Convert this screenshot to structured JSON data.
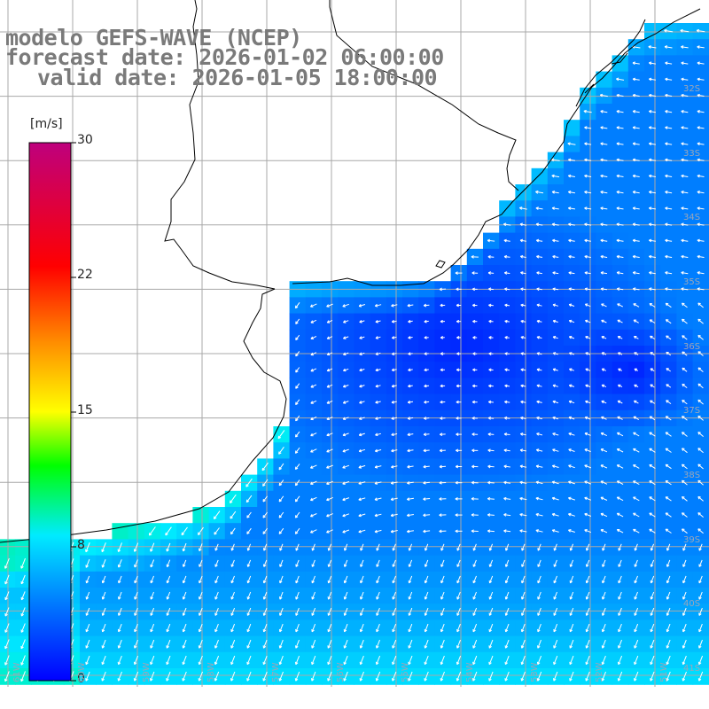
{
  "title": {
    "line1": "modelo GEFS-WAVE (NCEP)",
    "line2": "forecast date: 2026-01-02 06:00:00",
    "line3": "valid date: 2026-01-05 18:00:00"
  },
  "colorbar": {
    "unit": "[m/s]",
    "ticks": [
      "30",
      "22",
      "15",
      "8",
      "0"
    ],
    "colors": [
      "#0000ff",
      "#0080ff",
      "#00e5ff",
      "#00ff00",
      "#ffff00",
      "#ff8000",
      "#ff0000",
      "#c0007a"
    ]
  },
  "lat_labels": [
    "32S",
    "33S",
    "34S",
    "35S",
    "36S",
    "37S",
    "38S",
    "39S",
    "40S",
    "41S"
  ],
  "lon_labels": [
    "61W",
    "60W",
    "59W",
    "58W",
    "57W",
    "56W",
    "55W",
    "54W",
    "53W",
    "52W",
    "51W"
  ],
  "wind_field": {
    "variable": "wind speed",
    "unit": "m/s",
    "color_range": [
      0,
      30
    ]
  }
}
